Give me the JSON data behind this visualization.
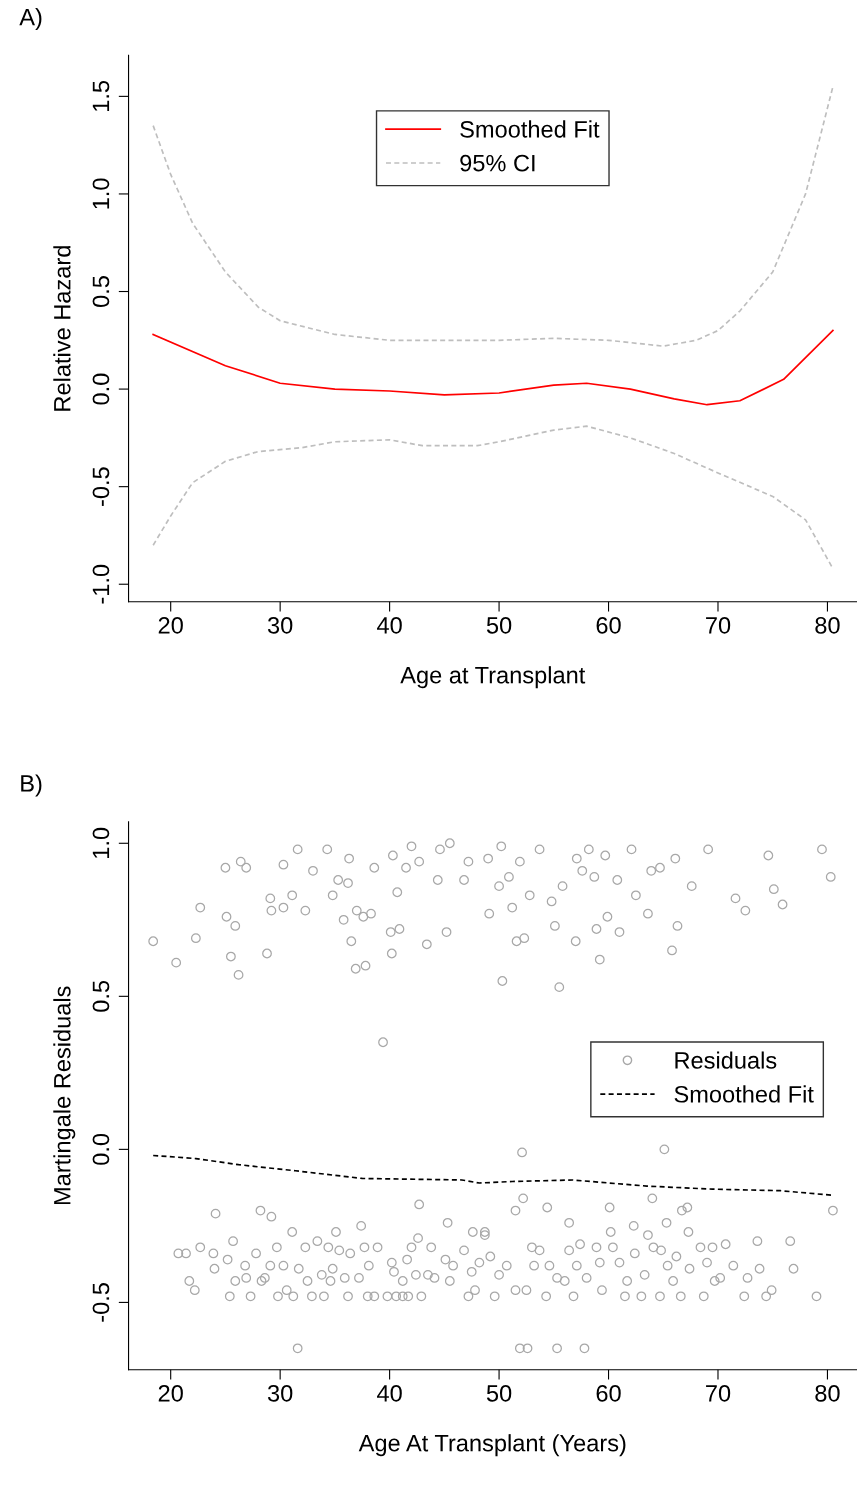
{
  "chart_data": [
    {
      "type": "line",
      "title": "A)",
      "xlabel": "Age at Transplant",
      "ylabel": "Relative Hazard",
      "xlim": [
        16.15,
        82.7
      ],
      "ylim": [
        -1.09,
        1.71
      ],
      "xticks": [
        20,
        30,
        40,
        50,
        60,
        70,
        80
      ],
      "yticks": [
        {
          "value": -1.0,
          "label": "-1.0"
        },
        -0.5,
        {
          "value": 0.0,
          "label": "0.0"
        },
        0.5,
        {
          "value": 1.0,
          "label": "1.0"
        },
        1.5
      ],
      "grid": false,
      "legend": "top",
      "series": [
        {
          "name": "Smoothed Fit",
          "color": "#ff0000",
          "line_style": "solid",
          "x": [
            18.4,
            25,
            30,
            35,
            40,
            45,
            50,
            55,
            58,
            62,
            66,
            69,
            72,
            76,
            80.5
          ],
          "values": [
            0.28,
            0.12,
            0.03,
            0.0,
            -0.01,
            -0.03,
            -0.02,
            0.02,
            0.03,
            0.0,
            -0.05,
            -0.08,
            -0.06,
            0.05,
            0.3
          ]
        },
        {
          "name": "95% CI",
          "color": "#bebebe",
          "line_style": "dashed",
          "x": [
            18.4,
            20,
            22,
            25,
            28,
            30,
            35,
            40,
            50,
            55,
            60,
            65,
            68,
            70,
            72,
            75,
            78,
            80.5
          ],
          "values": [
            1.35,
            1.1,
            0.85,
            0.6,
            0.42,
            0.35,
            0.28,
            0.25,
            0.25,
            0.26,
            0.25,
            0.22,
            0.25,
            0.3,
            0.4,
            0.6,
            1.0,
            1.55
          ]
        },
        {
          "color": "#bebebe",
          "line_style": "dashed",
          "x": [
            18.4,
            20,
            22,
            25,
            28,
            32,
            35,
            40,
            43,
            48,
            50,
            55,
            58,
            62,
            66,
            70,
            75,
            78,
            80.5
          ],
          "values": [
            -0.8,
            -0.65,
            -0.48,
            -0.37,
            -0.32,
            -0.3,
            -0.27,
            -0.26,
            -0.29,
            -0.29,
            -0.27,
            -0.21,
            -0.19,
            -0.25,
            -0.33,
            -0.43,
            -0.55,
            -0.67,
            -0.92
          ]
        }
      ]
    },
    {
      "type": "scatter",
      "title": "B)",
      "xlabel": "Age At Transplant (Years)",
      "ylabel": "Martingale Residuals",
      "xlim": [
        16.15,
        82.7
      ],
      "ylim": [
        -0.72,
        1.07
      ],
      "xticks": [
        20,
        30,
        40,
        50,
        60,
        70,
        80
      ],
      "yticks": [
        -0.5,
        {
          "value": 0.0,
          "label": "0.0"
        },
        0.5,
        {
          "value": 1.0,
          "label": "1.0"
        }
      ],
      "grid": false,
      "legend": "right",
      "series": [
        {
          "name": "Residuals",
          "type": "scatter",
          "marker": "circle",
          "color": "#a8a8a8",
          "x": [
            18.4,
            20.5,
            22.3,
            22.7,
            25.0,
            25.1,
            25.5,
            25.9,
            26.2,
            26.4,
            26.9,
            28.8,
            29.1,
            29.2,
            30.3,
            30.3,
            31.1,
            31.6,
            32.3,
            33.0,
            34.3,
            34.8,
            35.3,
            35.8,
            36.2,
            36.3,
            36.5,
            36.9,
            37.0,
            37.6,
            37.8,
            38.3,
            38.6,
            39.4,
            40.1,
            40.2,
            40.3,
            40.7,
            40.9,
            41.5,
            42.0,
            42.7,
            43.4,
            44.4,
            44.6,
            45.2,
            45.5,
            46.8,
            47.2,
            49.0,
            49.1,
            50.0,
            50.2,
            50.3,
            50.9,
            51.2,
            51.6,
            51.9,
            52.3,
            52.8,
            53.7,
            54.8,
            55.1,
            55.5,
            55.8,
            57.0,
            57.1,
            57.6,
            58.2,
            58.7,
            58.9,
            59.2,
            59.7,
            59.9,
            60.8,
            61.0,
            62.1,
            62.5,
            63.6,
            63.9,
            64.7,
            65.8,
            66.1,
            66.3,
            67.6,
            69.1,
            71.6,
            72.5,
            74.6,
            75.1,
            75.9,
            79.5,
            80.3,
            20.7,
            21.4,
            21.7,
            22.2,
            22.7,
            24.1,
            23.9,
            24.0,
            25.2,
            25.4,
            25.7,
            25.9,
            26.8,
            26.9,
            27.3,
            27.8,
            28.2,
            28.3,
            28.6,
            29.2,
            29.1,
            29.7,
            29.8,
            30.3,
            30.6,
            31.1,
            31.2,
            31.6,
            31.7,
            32.3,
            32.5,
            32.9,
            33.4,
            33.8,
            34.0,
            34.4,
            34.6,
            34.8,
            35.1,
            35.4,
            35.9,
            36.2,
            36.4,
            37.4,
            37.2,
            37.7,
            38.0,
            38.1,
            38.6,
            38.9,
            39.8,
            40.2,
            40.4,
            40.6,
            41.2,
            41.2,
            41.7,
            41.6,
            42.0,
            42.4,
            42.7,
            42.6,
            42.9,
            43.5,
            43.8,
            44.1,
            45.1,
            45.3,
            45.5,
            45.8,
            46.8,
            47.2,
            47.5,
            47.6,
            47.8,
            48.2,
            48.7,
            52.1,
            65.1,
            48.7,
            49.2,
            49.6,
            50.0,
            50.7,
            51.5,
            51.5,
            52.2,
            52.5,
            51.9,
            52.6,
            53.0,
            53.2,
            53.7,
            54.3,
            54.4,
            54.6,
            55.3,
            55.3,
            56.0,
            56.4,
            56.4,
            56.8,
            57.1,
            57.4,
            57.8,
            58.0,
            58.9,
            59.2,
            59.4,
            60.1,
            60.2,
            60.4,
            61.0,
            61.5,
            61.7,
            62.3,
            62.4,
            63.0,
            63.3,
            63.6,
            64.0,
            64.1,
            64.7,
            64.8,
            65.3,
            65.4,
            65.9,
            66.2,
            66.6,
            66.7,
            67.2,
            67.3,
            67.4,
            68.4,
            68.7,
            69.0,
            69.5,
            69.7,
            70.2,
            70.7,
            71.4,
            72.4,
            72.7,
            73.6,
            73.8,
            74.4,
            74.9,
            76.6,
            76.9,
            79.0,
            80.5
          ],
          "values": [
            0.68,
            0.61,
            0.69,
            0.79,
            0.92,
            0.76,
            0.63,
            0.73,
            0.57,
            0.94,
            0.92,
            0.64,
            0.82,
            0.78,
            0.79,
            0.93,
            0.83,
            0.98,
            0.78,
            0.91,
            0.98,
            0.83,
            0.88,
            0.75,
            0.87,
            0.95,
            0.68,
            0.59,
            0.78,
            0.76,
            0.6,
            0.77,
            0.92,
            0.35,
            0.71,
            0.64,
            0.96,
            0.84,
            0.72,
            0.92,
            0.99,
            0.94,
            0.67,
            0.88,
            0.98,
            0.71,
            1.0,
            0.88,
            0.94,
            0.95,
            0.77,
            0.86,
            0.99,
            0.55,
            0.89,
            0.79,
            0.68,
            0.94,
            0.69,
            0.83,
            0.98,
            0.81,
            0.73,
            0.53,
            0.86,
            0.68,
            0.95,
            0.91,
            0.98,
            0.89,
            0.72,
            0.62,
            0.96,
            0.76,
            0.88,
            0.71,
            0.98,
            0.83,
            0.77,
            0.91,
            0.92,
            0.65,
            0.95,
            0.73,
            0.86,
            0.98,
            0.82,
            0.78,
            0.96,
            0.85,
            0.8,
            0.98,
            0.89,
            -0.34,
            -0.34,
            -0.43,
            -0.46,
            -0.32,
            -0.21,
            -0.34,
            -0.39,
            -0.36,
            -0.48,
            -0.3,
            -0.43,
            -0.38,
            -0.42,
            -0.48,
            -0.34,
            -0.2,
            -0.43,
            -0.42,
            -0.22,
            -0.38,
            -0.32,
            -0.48,
            -0.38,
            -0.46,
            -0.27,
            -0.48,
            -0.65,
            -0.39,
            -0.32,
            -0.43,
            -0.48,
            -0.3,
            -0.41,
            -0.48,
            -0.32,
            -0.43,
            -0.39,
            -0.27,
            -0.33,
            -0.42,
            -0.48,
            -0.34,
            -0.25,
            -0.42,
            -0.32,
            -0.48,
            -0.38,
            -0.48,
            -0.32,
            -0.48,
            -0.37,
            -0.4,
            -0.48,
            -0.43,
            -0.48,
            -0.48,
            -0.36,
            -0.32,
            -0.41,
            -0.18,
            -0.29,
            -0.48,
            -0.41,
            -0.32,
            -0.42,
            -0.36,
            -0.24,
            -0.43,
            -0.38,
            -0.33,
            -0.48,
            -0.4,
            -0.27,
            -0.46,
            -0.37,
            -0.28,
            -0.01,
            0.0,
            -0.27,
            -0.35,
            -0.48,
            -0.41,
            -0.38,
            -0.2,
            -0.46,
            -0.16,
            -0.46,
            -0.65,
            -0.65,
            -0.32,
            -0.38,
            -0.33,
            -0.48,
            -0.19,
            -0.38,
            -0.65,
            -0.42,
            -0.43,
            -0.24,
            -0.33,
            -0.48,
            -0.38,
            -0.31,
            -0.65,
            -0.42,
            -0.32,
            -0.37,
            -0.46,
            -0.19,
            -0.27,
            -0.32,
            -0.37,
            -0.48,
            -0.43,
            -0.25,
            -0.34,
            -0.48,
            -0.41,
            -0.28,
            -0.16,
            -0.32,
            -0.48,
            -0.33,
            -0.24,
            -0.38,
            -0.43,
            -0.35,
            -0.48,
            -0.2,
            -0.19,
            -0.27,
            -0.39,
            -0.32,
            -0.48,
            -0.37,
            -0.32,
            -0.43,
            -0.42,
            -0.31,
            -0.38,
            -0.48,
            -0.42,
            -0.3,
            -0.39,
            -0.48,
            -0.46,
            -0.3,
            -0.39,
            -0.48,
            -0.2
          ]
        },
        {
          "name": "Smoothed Fit",
          "type": "line",
          "color": "#000000",
          "line_style": "dashed",
          "x": [
            18.4,
            22.3,
            26.2,
            31.4,
            37.5,
            46.6,
            48.2,
            51.2,
            56.7,
            63.5,
            69.5,
            75.7,
            80.5
          ],
          "values": [
            -0.02,
            -0.03,
            -0.05,
            -0.07,
            -0.095,
            -0.1,
            -0.11,
            -0.105,
            -0.1,
            -0.12,
            -0.13,
            -0.135,
            -0.15
          ]
        }
      ]
    }
  ]
}
